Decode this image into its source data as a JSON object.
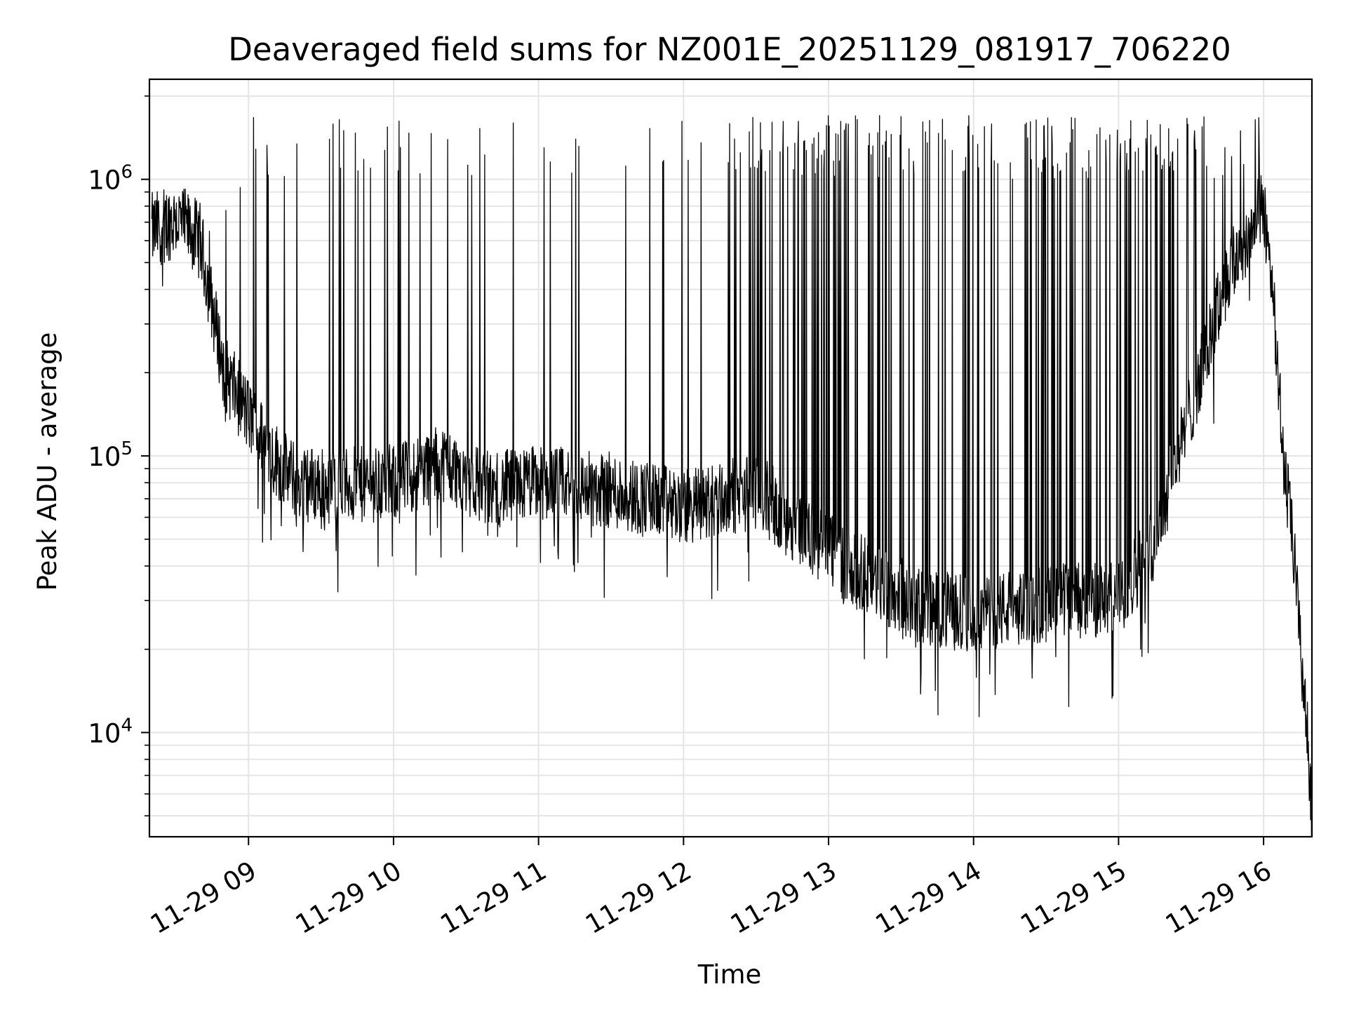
{
  "chart_data": {
    "type": "line",
    "title": "Deaveraged field sums for NZ001E_20251129_081917_706220",
    "xlabel": "Time",
    "ylabel": "Peak ADU - average",
    "yscale": "log",
    "ylim": [
      4200,
      2300000
    ],
    "xlim": [
      "2025-11-29 08:19",
      "2025-11-29 16:20"
    ],
    "grid": true,
    "x_tick_labels": [
      "11-29 09",
      "11-29 10",
      "11-29 11",
      "11-29 12",
      "11-29 13",
      "11-29 14",
      "11-29 15",
      "11-29 16"
    ],
    "y_ticks": [
      {
        "base": "10",
        "exp": "4",
        "value": 10000
      },
      {
        "base": "10",
        "exp": "5",
        "value": 100000
      },
      {
        "base": "10",
        "exp": "6",
        "value": 1000000
      }
    ],
    "line_color": "#000000",
    "series": [
      {
        "baseline_points": [
          [
            "2025-11-29 08:20",
            650000
          ],
          [
            "2025-11-29 08:30",
            720000
          ],
          [
            "2025-11-29 08:40",
            600000
          ],
          [
            "2025-11-29 08:50",
            200000
          ],
          [
            "2025-11-29 09:00",
            140000
          ],
          [
            "2025-11-29 09:10",
            100000
          ],
          [
            "2025-11-29 09:20",
            80000
          ],
          [
            "2025-11-29 09:40",
            78000
          ],
          [
            "2025-11-29 10:00",
            80000
          ],
          [
            "2025-11-29 10:20",
            95000
          ],
          [
            "2025-11-29 10:40",
            75000
          ],
          [
            "2025-11-29 11:00",
            80000
          ],
          [
            "2025-11-29 11:30",
            75000
          ],
          [
            "2025-11-29 12:00",
            65000
          ],
          [
            "2025-11-29 12:30",
            75000
          ],
          [
            "2025-11-29 13:00",
            45000
          ],
          [
            "2025-11-29 13:20",
            35000
          ],
          [
            "2025-11-29 13:40",
            28000
          ],
          [
            "2025-11-29 14:00",
            27000
          ],
          [
            "2025-11-29 14:40",
            30000
          ],
          [
            "2025-11-29 15:00",
            30000
          ],
          [
            "2025-11-29 15:15",
            50000
          ],
          [
            "2025-11-29 15:30",
            150000
          ],
          [
            "2025-11-29 15:45",
            450000
          ],
          [
            "2025-11-29 16:00",
            800000
          ],
          [
            "2025-11-29 16:04",
            400000
          ],
          [
            "2025-11-29 16:08",
            100000
          ],
          [
            "2025-11-29 16:12",
            50000
          ],
          [
            "2025-11-29 16:17",
            13000
          ],
          [
            "2025-11-29 16:20",
            5500
          ]
        ],
        "spike_peak_range": [
          1000000,
          1700000
        ]
      }
    ]
  }
}
